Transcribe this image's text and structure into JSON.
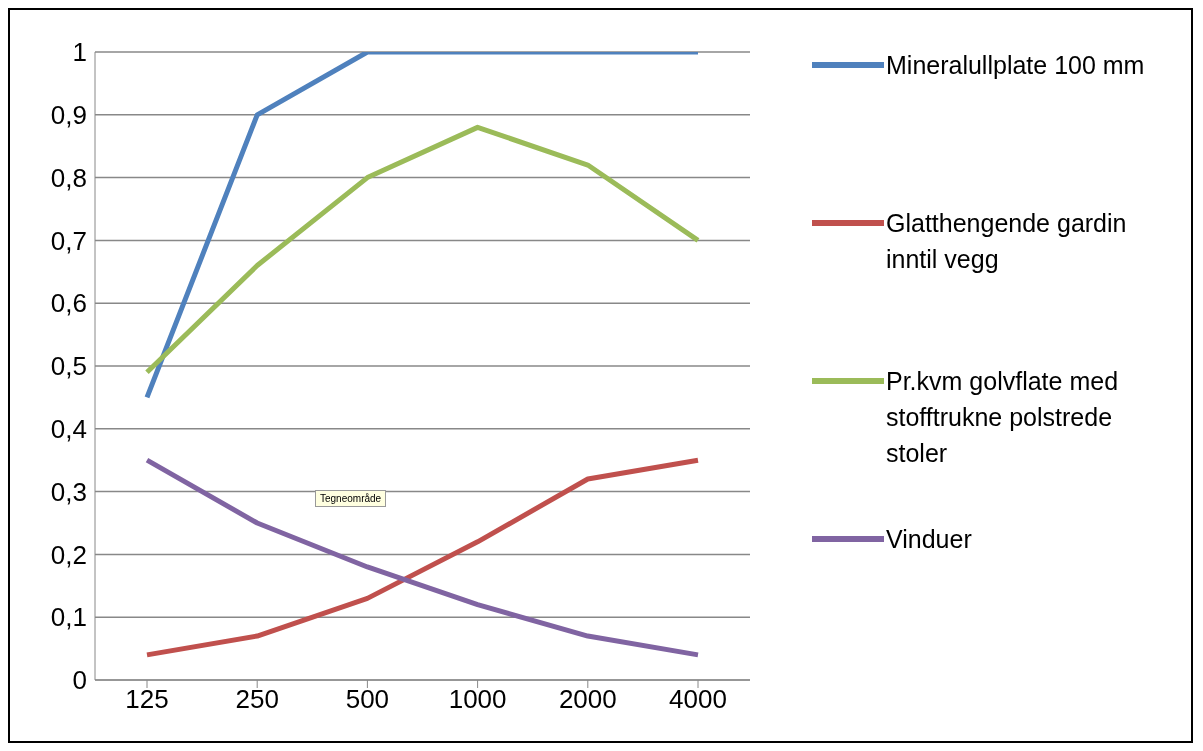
{
  "chart_data": {
    "type": "line",
    "categories": [
      "125",
      "250",
      "500",
      "1000",
      "2000",
      "4000"
    ],
    "series": [
      {
        "name": "Mineralullplate 100 mm",
        "color": "#4f81bd",
        "values": [
          0.45,
          0.9,
          1,
          1,
          1,
          1
        ]
      },
      {
        "name": "Glatthengende gardin inntil vegg",
        "color": "#c0504d",
        "values": [
          0.04,
          0.07,
          0.13,
          0.22,
          0.32,
          0.35
        ]
      },
      {
        "name": "Pr.kvm golvflate med stofftrukne polstrede stoler",
        "color": "#9bbb59",
        "values": [
          0.49,
          0.66,
          0.8,
          0.88,
          0.82,
          0.7
        ]
      },
      {
        "name": "Vinduer",
        "color": "#8064a2",
        "values": [
          0.35,
          0.25,
          0.18,
          0.12,
          0.07,
          0.04
        ]
      }
    ],
    "ylim": [
      0,
      1
    ],
    "yticks": [
      0,
      {
        "value": 0.1,
        "label": "0,1"
      },
      {
        "value": 0.2,
        "label": "0,2"
      },
      {
        "value": 0.3,
        "label": "0,3"
      },
      {
        "value": 0.4,
        "label": "0,4"
      },
      {
        "value": 0.5,
        "label": "0,5"
      },
      {
        "value": 0.6,
        "label": "0,6"
      },
      {
        "value": 0.7,
        "label": "0,7"
      },
      {
        "value": 0.8,
        "label": "0,8"
      },
      {
        "value": 0.9,
        "label": "0,9"
      },
      1
    ],
    "grid": "y",
    "legend": "right",
    "marker": "none",
    "line_style": "solid",
    "annotations": [
      "Tegneområde"
    ]
  }
}
